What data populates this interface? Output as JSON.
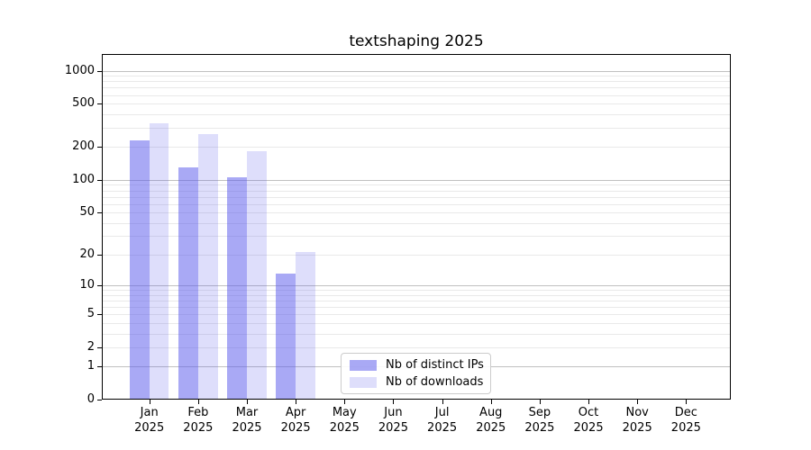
{
  "chart_data": {
    "type": "bar",
    "title": "textshaping 2025",
    "categories": [
      "Jan 2025",
      "Feb 2025",
      "Mar 2025",
      "Apr 2025",
      "May 2025",
      "Jun 2025",
      "Jul 2025",
      "Aug 2025",
      "Sep 2025",
      "Oct 2025",
      "Nov 2025",
      "Dec 2025"
    ],
    "series": [
      {
        "name": "Nb of distinct IPs",
        "color": "rgba(90,90,235,0.52)",
        "values": [
          230,
          130,
          105,
          13,
          0,
          0,
          0,
          0,
          0,
          0,
          0,
          0
        ]
      },
      {
        "name": "Nb of downloads",
        "color": "rgba(90,90,235,0.2)",
        "values": [
          330,
          265,
          183,
          21,
          0,
          0,
          0,
          0,
          0,
          0,
          0,
          0
        ]
      }
    ],
    "xlabel": "",
    "ylabel": "",
    "y_scale": "log1p",
    "ylim": [
      0,
      1420
    ],
    "y_ticks": [
      0,
      1,
      2,
      5,
      10,
      20,
      50,
      100,
      200,
      500,
      1000
    ],
    "gridlines_major": [
      1,
      10,
      100,
      1000
    ],
    "gridlines_minor": [
      2,
      3,
      4,
      5,
      6,
      7,
      8,
      9,
      20,
      30,
      40,
      50,
      60,
      70,
      80,
      90,
      200,
      300,
      400,
      500,
      600,
      700,
      800,
      900
    ],
    "grid": true,
    "legend_position": "lower center",
    "colors": {
      "gridline_major": "#c0c0c0",
      "gridline_minor": "#e9e9e9",
      "axis_frame": "#000000",
      "tick_text": "#000000",
      "background": "#ffffff"
    }
  }
}
